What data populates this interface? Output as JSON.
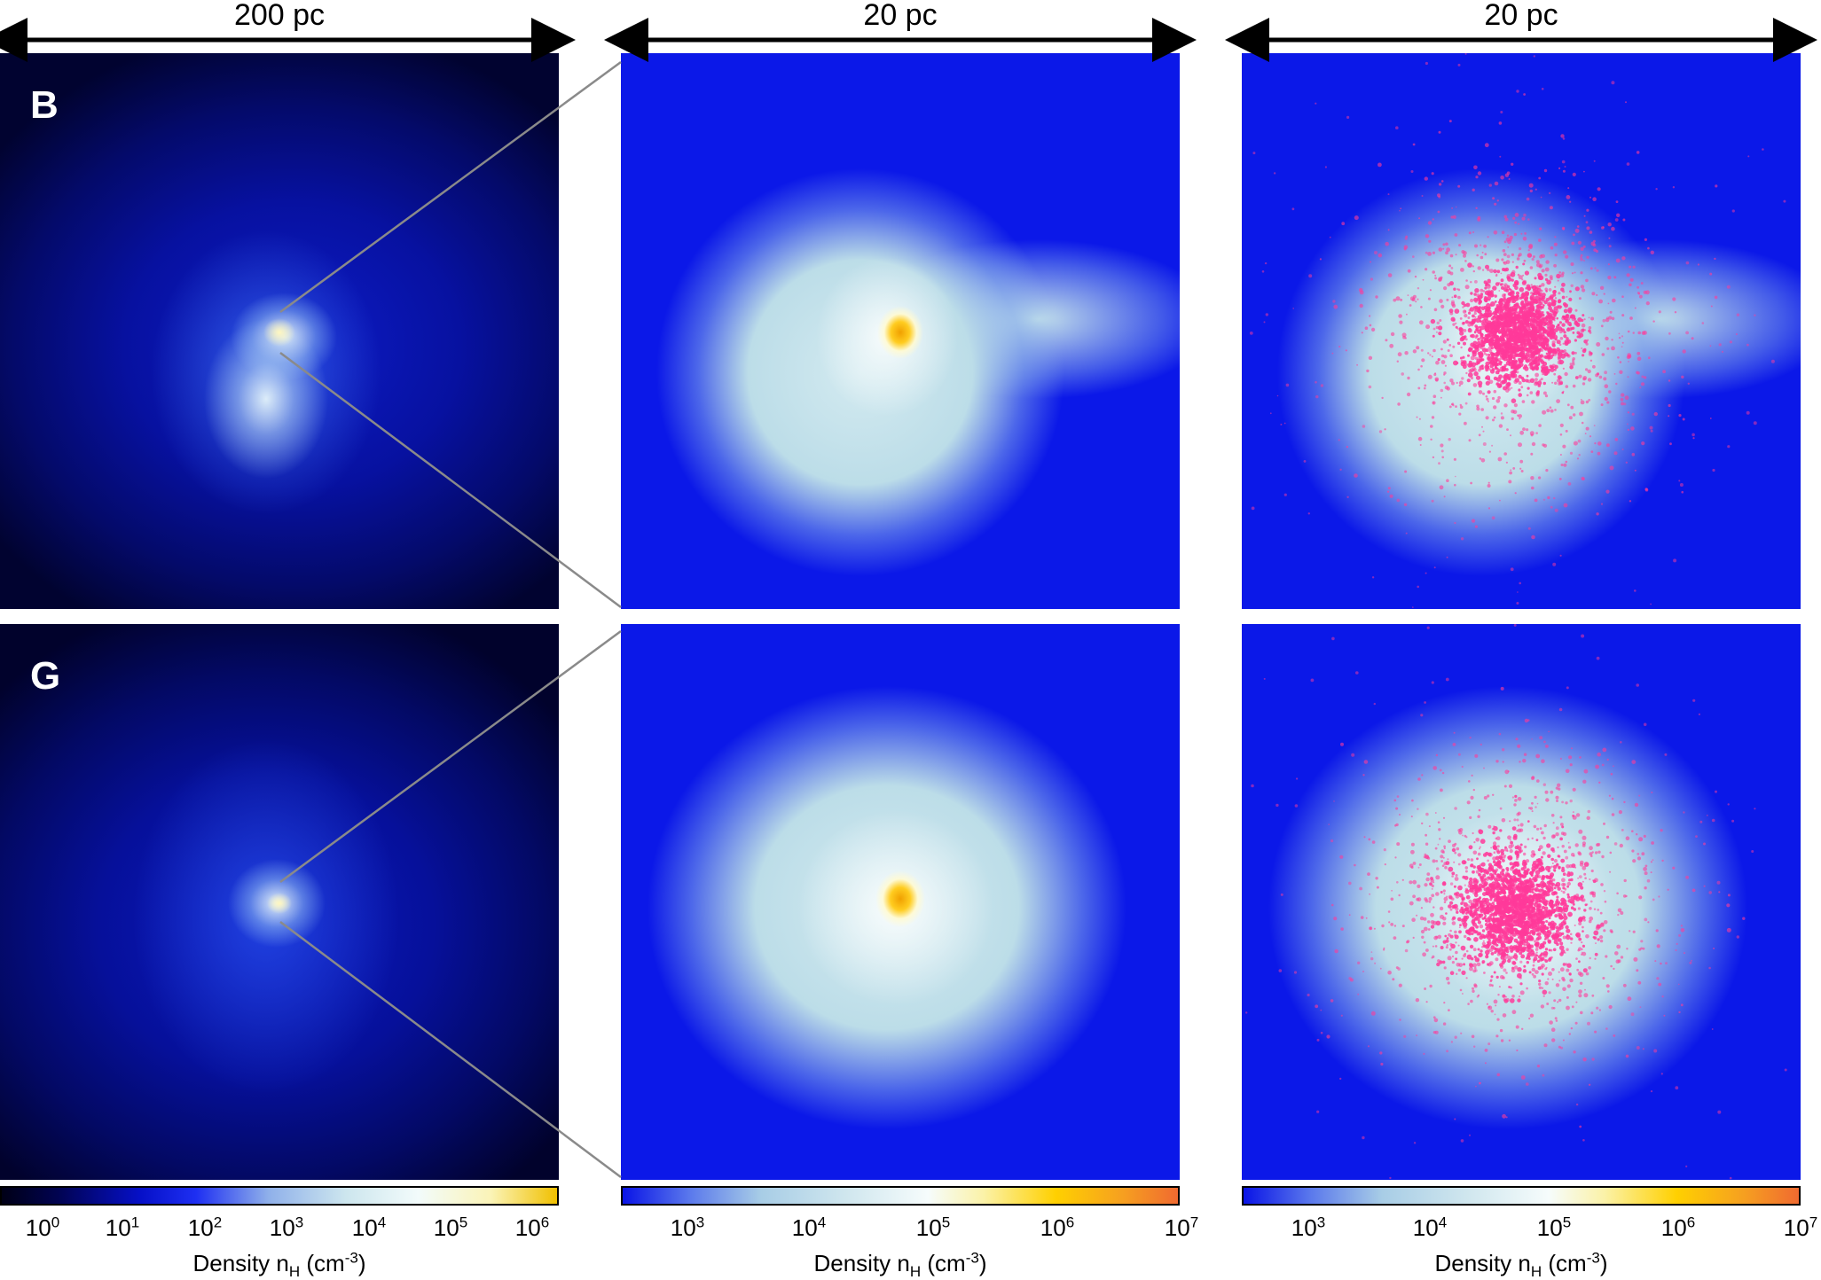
{
  "scale_bars": {
    "left": "200 pc",
    "middle": "20 pc",
    "right": "20 pc"
  },
  "panels": {
    "top_letter": "B",
    "bottom_letter": "G"
  },
  "colorbars": {
    "left": {
      "ticks": [
        {
          "base": "10",
          "exp": "0"
        },
        {
          "base": "10",
          "exp": "1"
        },
        {
          "base": "10",
          "exp": "2"
        },
        {
          "base": "10",
          "exp": "3"
        },
        {
          "base": "10",
          "exp": "4"
        },
        {
          "base": "10",
          "exp": "5"
        },
        {
          "base": "10",
          "exp": "6"
        }
      ],
      "label_main": "Density n",
      "label_sub": "H",
      "label_unit_pre": " (cm",
      "label_unit_exp": "-3",
      "label_unit_post": ")"
    },
    "middle": {
      "ticks": [
        {
          "base": "10",
          "exp": "3"
        },
        {
          "base": "10",
          "exp": "4"
        },
        {
          "base": "10",
          "exp": "5"
        },
        {
          "base": "10",
          "exp": "6"
        },
        {
          "base": "10",
          "exp": "7"
        }
      ],
      "label_main": "Density n",
      "label_sub": "H",
      "label_unit_pre": " (cm",
      "label_unit_exp": "-3",
      "label_unit_post": ")"
    },
    "right": {
      "ticks": [
        {
          "base": "10",
          "exp": "3"
        },
        {
          "base": "10",
          "exp": "4"
        },
        {
          "base": "10",
          "exp": "5"
        },
        {
          "base": "10",
          "exp": "6"
        },
        {
          "base": "10",
          "exp": "7"
        }
      ],
      "label_main": "Density n",
      "label_sub": "H",
      "label_unit_pre": " (cm",
      "label_unit_exp": "-3",
      "label_unit_post": ")"
    }
  },
  "colors": {
    "deep": "#00002a",
    "blue": "#0a14e6",
    "light_blue": "#b9dde8",
    "white": "#f4fbfb",
    "yellow": "#ffd000",
    "orange": "#f07a2a",
    "star_pink": "#ff3a9a"
  }
}
